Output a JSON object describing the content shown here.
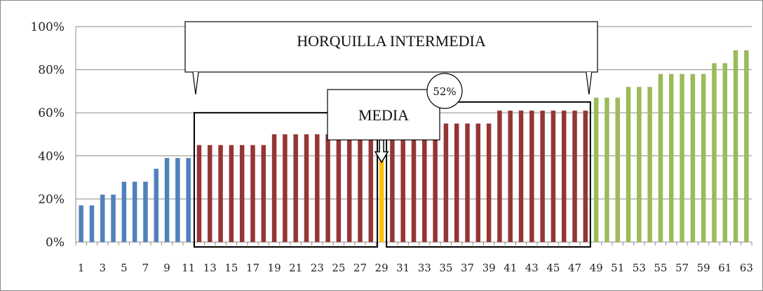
{
  "chart_data": {
    "type": "bar",
    "title": "",
    "xlabel": "",
    "ylabel": "",
    "ylim": [
      0,
      100
    ],
    "y_ticks": [
      "0%",
      "20%",
      "40%",
      "60%",
      "80%",
      "100%"
    ],
    "y_tick_values": [
      0,
      20,
      40,
      60,
      80,
      100
    ],
    "grid": true,
    "categories": [
      1,
      2,
      3,
      4,
      5,
      6,
      7,
      8,
      9,
      10,
      11,
      12,
      13,
      14,
      15,
      16,
      17,
      18,
      19,
      20,
      21,
      22,
      23,
      24,
      25,
      26,
      27,
      28,
      29,
      30,
      31,
      32,
      33,
      34,
      35,
      36,
      37,
      38,
      39,
      40,
      41,
      42,
      43,
      44,
      45,
      46,
      47,
      48,
      49,
      50,
      51,
      52,
      53,
      54,
      55,
      56,
      57,
      58,
      59,
      60,
      61,
      62,
      63
    ],
    "x_tick_labels": [
      "1",
      "3",
      "5",
      "7",
      "9",
      "11",
      "13",
      "15",
      "17",
      "19",
      "21",
      "23",
      "25",
      "27",
      "29",
      "31",
      "33",
      "35",
      "37",
      "39",
      "41",
      "43",
      "45",
      "47",
      "49",
      "51",
      "53",
      "55",
      "57",
      "59",
      "61",
      "63"
    ],
    "values": [
      17,
      17,
      22,
      22,
      28,
      28,
      28,
      34,
      39,
      39,
      39,
      45,
      45,
      45,
      45,
      45,
      45,
      45,
      50,
      50,
      50,
      50,
      50,
      50,
      50,
      50,
      50,
      50,
      52,
      50,
      50,
      50,
      50,
      50,
      55,
      55,
      55,
      55,
      55,
      61,
      61,
      61,
      61,
      61,
      61,
      61,
      61,
      61,
      67,
      67,
      67,
      72,
      72,
      72,
      78,
      78,
      78,
      78,
      78,
      83,
      83,
      89,
      89
    ],
    "colors": {
      "low": "#4f81bd",
      "middle": "#943634",
      "median": "#ffc000",
      "high": "#9bbb59"
    },
    "groups": [
      {
        "range": [
          1,
          11
        ],
        "color_key": "low"
      },
      {
        "range": [
          12,
          48
        ],
        "color_key": "middle"
      },
      {
        "range": [
          29,
          29
        ],
        "color_key": "median"
      },
      {
        "range": [
          49,
          63
        ],
        "color_key": "high"
      }
    ],
    "annotations": {
      "range_label": "HORQUILLA INTERMEDIA",
      "median_label": "MEDIA",
      "median_value": "52%"
    }
  }
}
